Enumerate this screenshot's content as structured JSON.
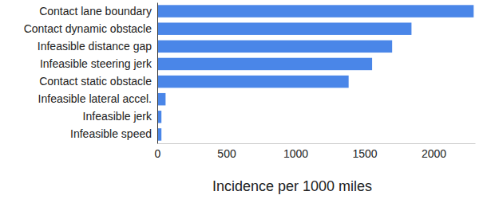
{
  "chart_data": {
    "type": "bar",
    "orientation": "horizontal",
    "x_label": "Incidence per 1000 miles",
    "categories": [
      "Contact lane boundary",
      "Contact dynamic obstacle",
      "Infeasible distance gap",
      "Infeasible steering jerk",
      "Contact static obstacle",
      "Infeasible lateral accel.",
      "Infeasible jerk",
      "Infeasible speed"
    ],
    "values": [
      2290,
      1840,
      1700,
      1555,
      1385,
      60,
      30,
      30
    ],
    "color": "#4a86e8",
    "xlim": [
      0,
      2300
    ],
    "xticks": [
      0,
      500,
      1000,
      1500,
      2000
    ],
    "grid": false
  }
}
